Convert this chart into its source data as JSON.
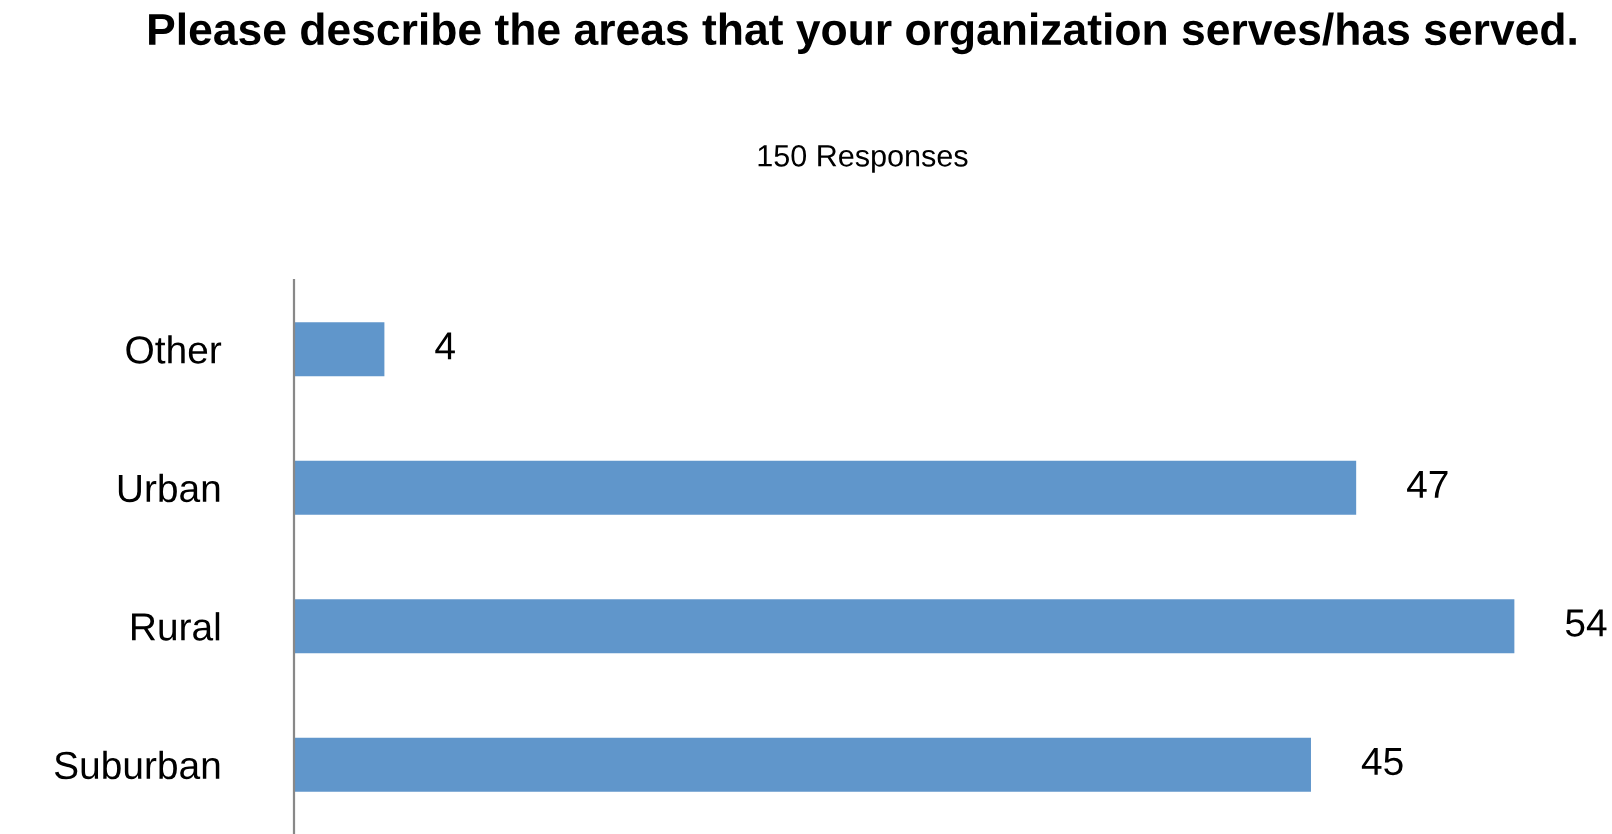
{
  "chart_data": {
    "type": "bar",
    "orientation": "horizontal",
    "title": "Please describe the areas that your organization serves/has served.",
    "subtitle": "150 Responses",
    "categories": [
      "Other",
      "Urban",
      "Rural",
      "Suburban"
    ],
    "values": [
      4,
      47,
      54,
      45
    ],
    "color": "#6096cb",
    "data_labels": true,
    "grid": false
  }
}
